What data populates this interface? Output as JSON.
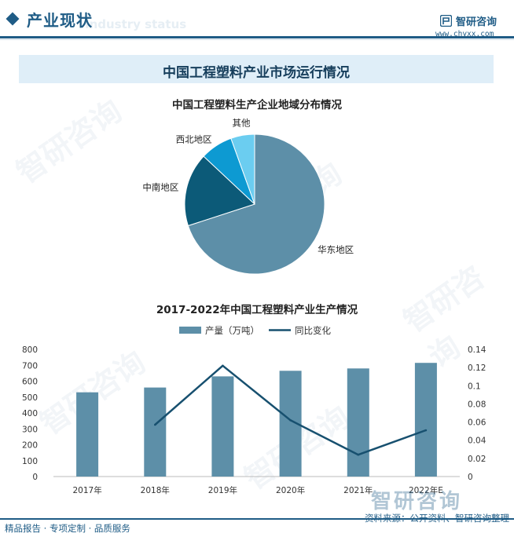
{
  "header": {
    "title": "产业现状",
    "ghost_text": "Industry status",
    "brand_name": "智研咨询",
    "brand_url": "www.chyxx.com"
  },
  "banner": {
    "title": "中国工程塑料产业市场运行情况"
  },
  "watermark": {
    "text": "智研咨询"
  },
  "colors": {
    "primary": "#1f5c86",
    "bar": "#5d8fa8",
    "line": "#17506f",
    "pie_huadong": "#5d8fa8",
    "pie_zhongnan": "#0c5a78",
    "pie_xibei": "#0d9ad2",
    "pie_qita": "#6bcdf0"
  },
  "chart_data": [
    {
      "type": "pie",
      "title": "中国工程塑料生产企业地域分布情况",
      "categories": [
        "华东地区",
        "中南地区",
        "西北地区",
        "其他"
      ],
      "values": [
        70,
        17,
        7.5,
        5.5
      ]
    },
    {
      "type": "bar",
      "title": "2017-2022年中国工程塑料产业生产情况",
      "categories": [
        "2017年",
        "2018年",
        "2019年",
        "2020年",
        "2021年",
        "2022年E"
      ],
      "series": [
        {
          "name": "产量（万吨）",
          "type": "bar",
          "axis": "left",
          "values": [
            530,
            560,
            630,
            665,
            680,
            715
          ]
        },
        {
          "name": "同比变化",
          "type": "line",
          "axis": "right",
          "values": [
            null,
            0.057,
            0.122,
            0.062,
            0.024,
            0.051
          ]
        }
      ],
      "y_left": {
        "ylim": [
          0,
          800
        ],
        "ticks": [
          "0",
          "100",
          "200",
          "300",
          "400",
          "500",
          "600",
          "700",
          "800"
        ]
      },
      "y_right": {
        "ylim": [
          0,
          0.14
        ],
        "ticks": [
          "0",
          "0.02",
          "0.04",
          "0.06",
          "0.08",
          "0.1",
          "0.12",
          "0.14"
        ]
      },
      "legend_position": "top-center",
      "grid": false
    }
  ],
  "footer": {
    "left": "精品报告 · 专项定制 · 品质服务",
    "right": "资料来源：公开资料、智研咨询整理"
  }
}
